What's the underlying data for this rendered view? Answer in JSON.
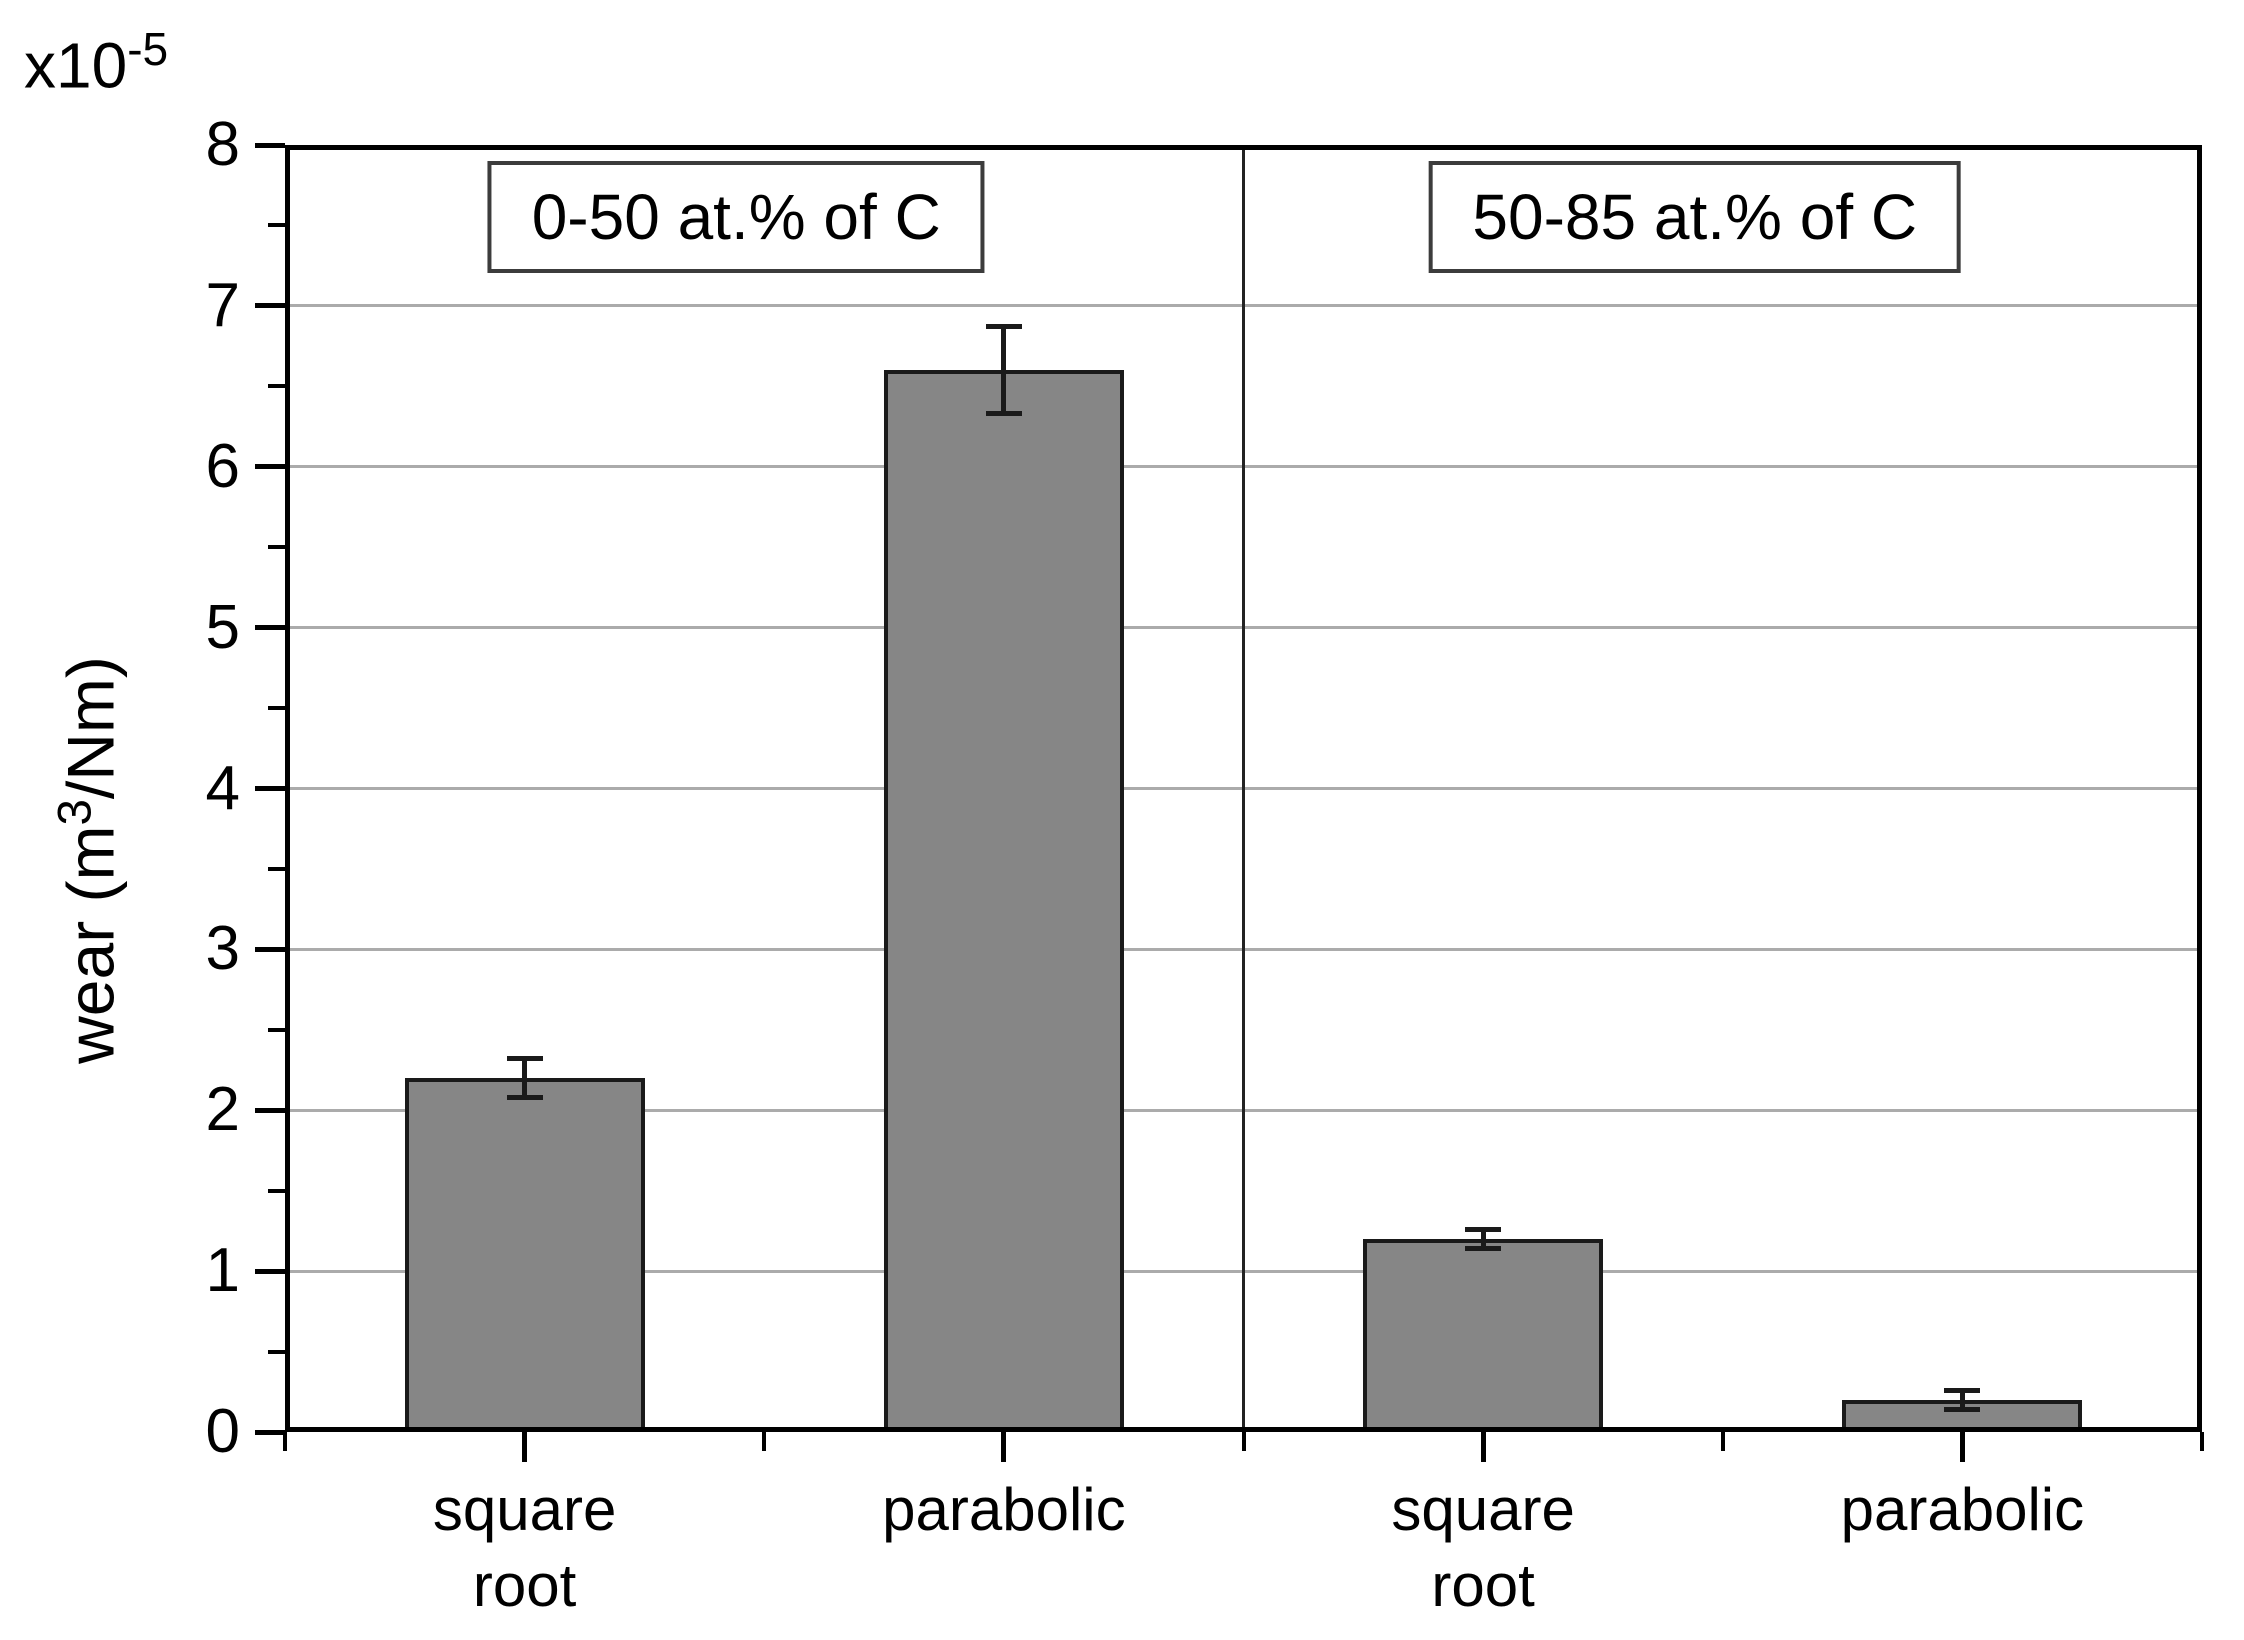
{
  "chart_data": {
    "type": "bar",
    "title": "",
    "xlabel": "",
    "ylabel": "wear (m³/Nm)",
    "ylabel_parts": {
      "prefix": "wear (m",
      "sup": "3",
      "suffix": "/Nm)"
    },
    "y_multiplier": {
      "base": "x10",
      "exponent": "-5"
    },
    "y_axis": {
      "min": 0,
      "max": 8,
      "major_step": 1,
      "minor_step": 0.5,
      "tick_labels": [
        "0",
        "1",
        "2",
        "3",
        "4",
        "5",
        "6",
        "7",
        "8"
      ]
    },
    "grid": "horizontal lines at every major tick",
    "legend": "none",
    "panels": [
      {
        "label": "0-50 at.% of C",
        "bars": [
          {
            "category": "square root",
            "category_lines": [
              "square",
              "root"
            ],
            "value": 2.2,
            "error": 0.12
          },
          {
            "category": "parabolic",
            "category_lines": [
              "parabolic"
            ],
            "value": 6.6,
            "error": 0.27
          }
        ]
      },
      {
        "label": "50-85 at.% of C",
        "bars": [
          {
            "category": "square root",
            "category_lines": [
              "square",
              "root"
            ],
            "value": 1.2,
            "error": 0.06
          },
          {
            "category": "parabolic",
            "category_lines": [
              "parabolic"
            ],
            "value": 0.2,
            "error": 0.06
          }
        ]
      }
    ],
    "colors": {
      "bar_fill": "#868686",
      "bar_border": "#1a1a1a",
      "grid_line": "#ababab",
      "frame": "#000000",
      "panel_box_border": "#3c3c3c",
      "background": "#ffffff"
    }
  }
}
